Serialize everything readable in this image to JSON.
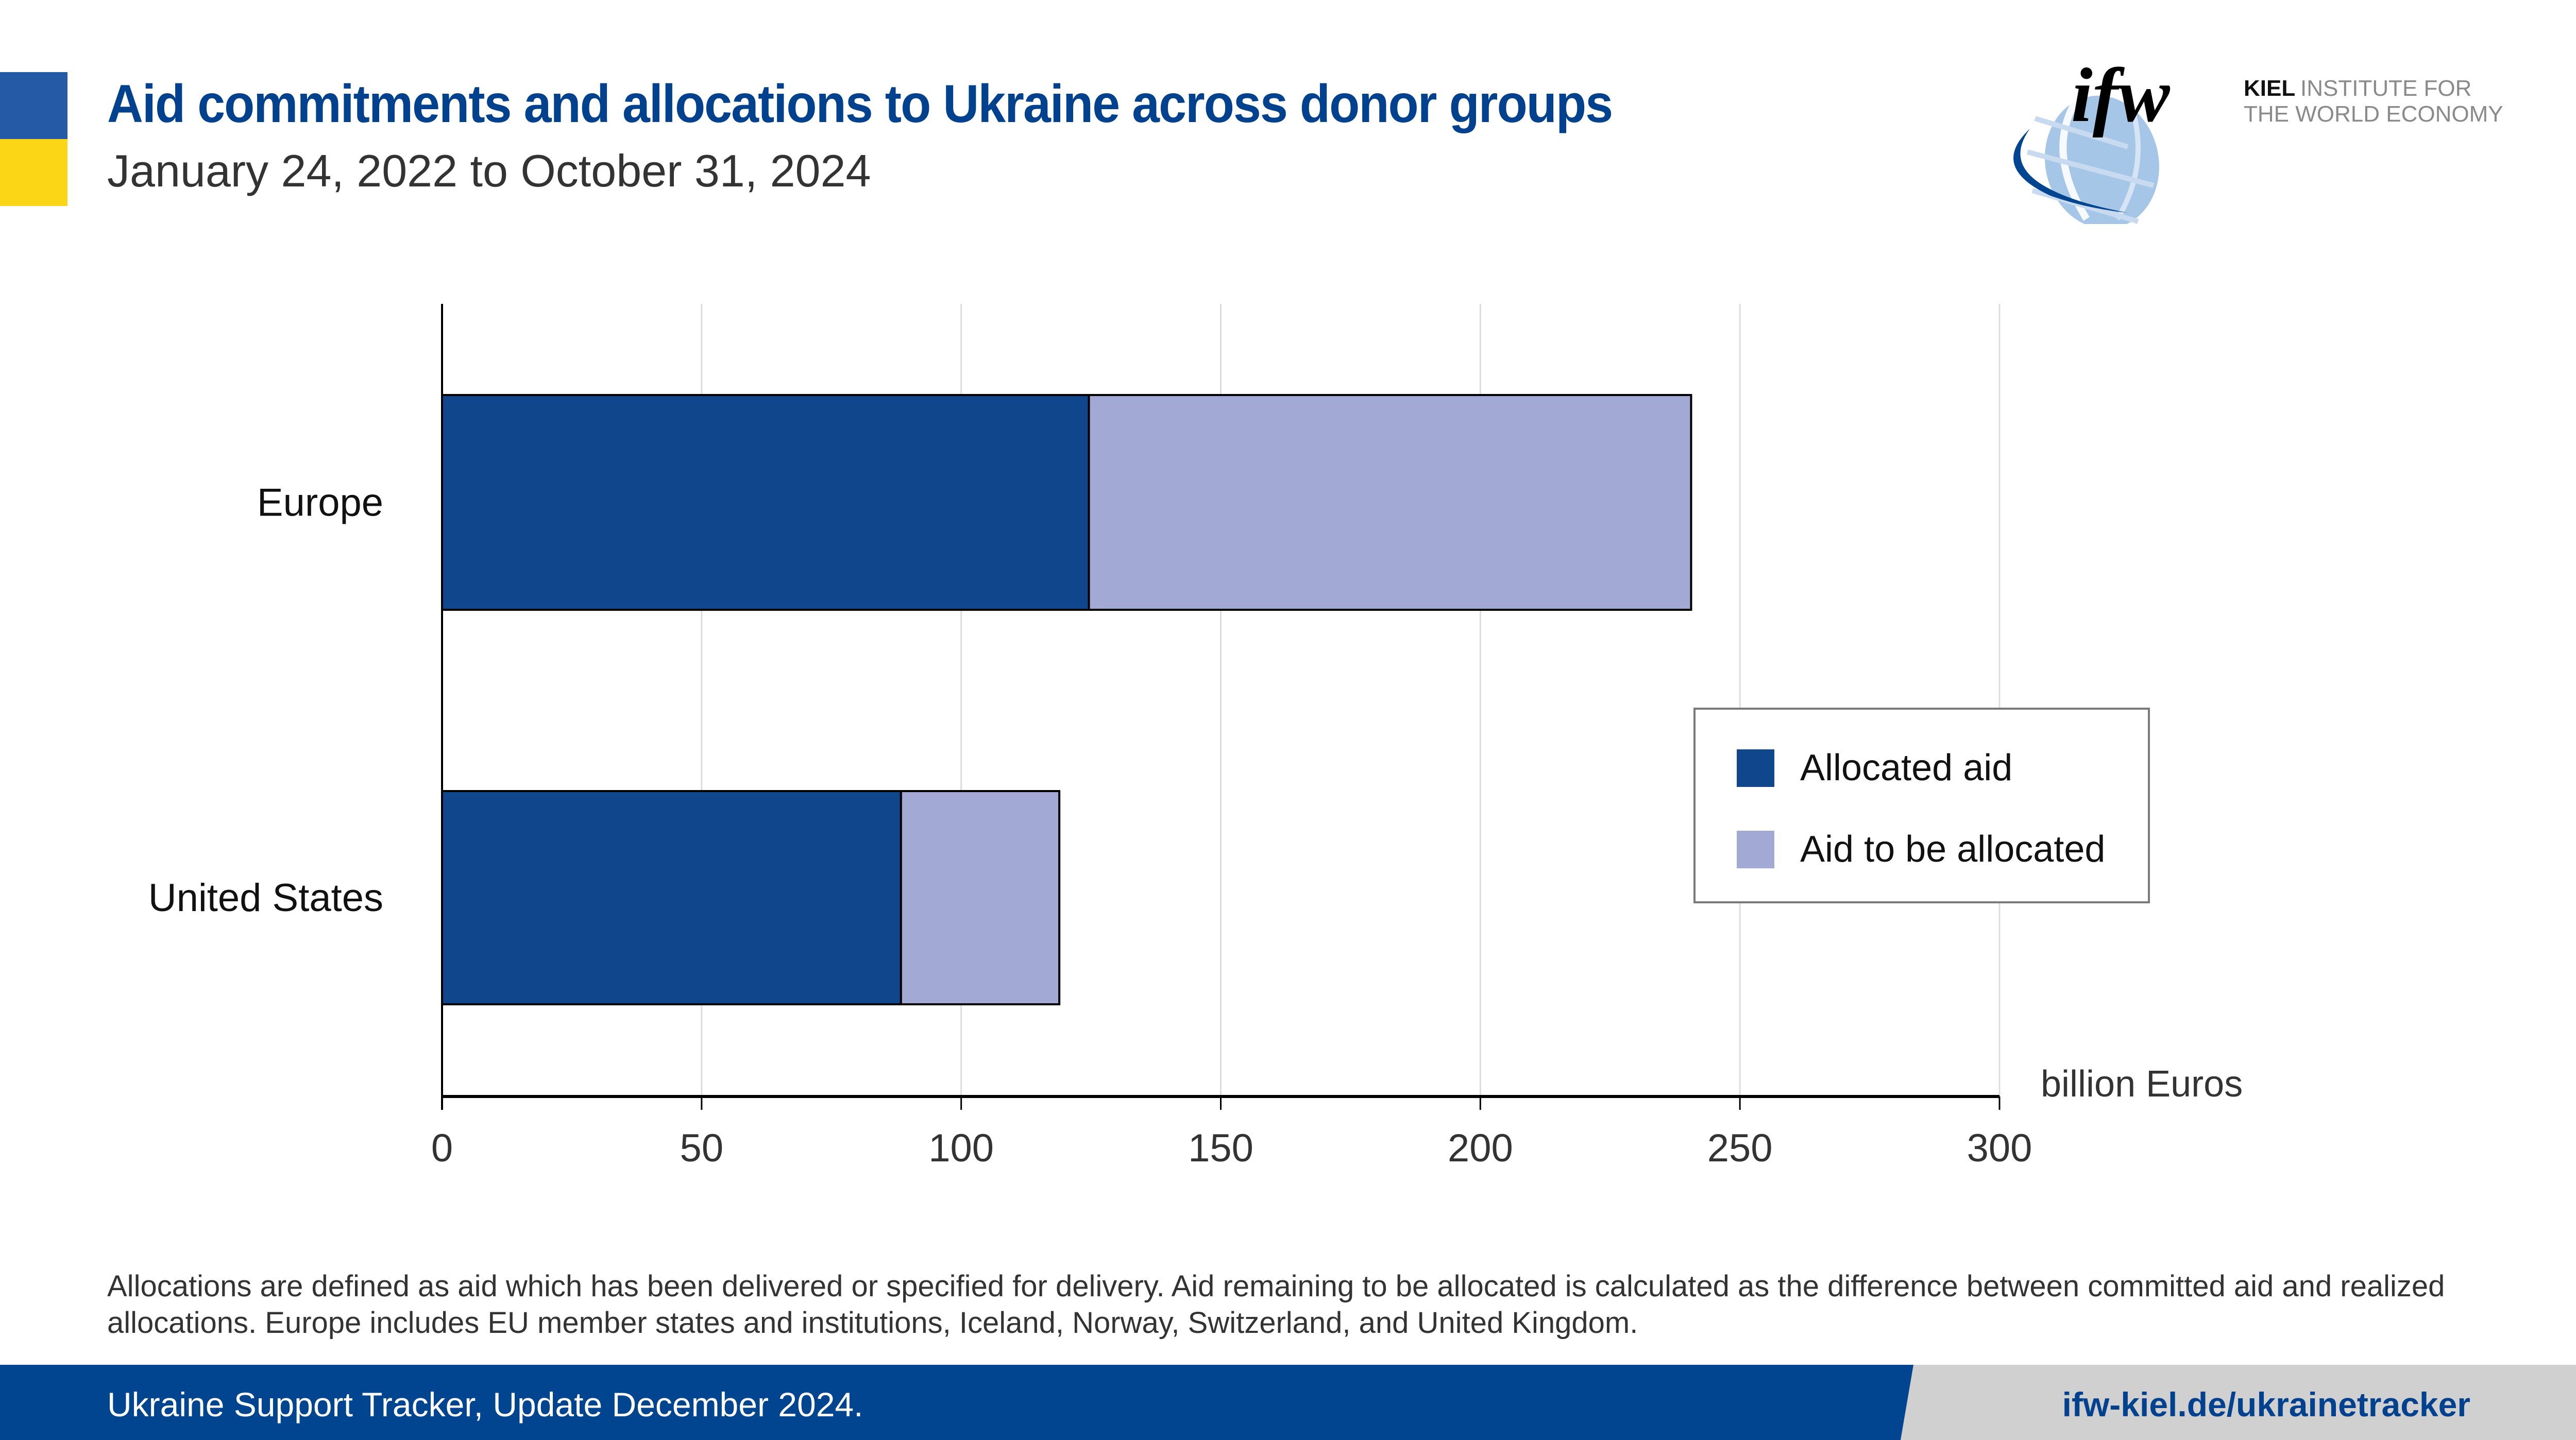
{
  "colors": {
    "flag_blue": "#255BA6",
    "flag_yellow": "#FBD616",
    "title": "#01418E",
    "allocated": "#0F468C",
    "to_be_allocated": "#A2A9D4",
    "footer_blue": "#01448F",
    "footer_grey": "#D0D0D0",
    "gridline": "#DCDCDC"
  },
  "header": {
    "title": "Aid commitments and allocations to Ukraine across donor groups",
    "subtitle": "January 24, 2022 to October 31, 2024"
  },
  "logo": {
    "mark": "ifw",
    "name_bold": "KIEL",
    "name_line1": "INSTITUTE FOR",
    "name_line2": "THE WORLD ECONOMY",
    "icon": "globe-icon"
  },
  "chart_data": {
    "type": "bar",
    "orientation": "horizontal",
    "stacked": true,
    "categories": [
      "Europe",
      "United States"
    ],
    "series": [
      {
        "name": "Allocated aid",
        "values": [
          124.6,
          88.4
        ]
      },
      {
        "name": "Aid to be allocated",
        "values": [
          116.0,
          30.5
        ]
      }
    ],
    "title": "Aid commitments and allocations to Ukraine across donor groups",
    "subtitle": "January 24, 2022 to October 31, 2024",
    "xlabel": "billion Euros",
    "ylabel": "",
    "xlim": [
      0,
      300
    ],
    "xticks": [
      0,
      50,
      100,
      150,
      200,
      250,
      300
    ],
    "xtick_labels": [
      "0",
      "50",
      "100",
      "150",
      "200",
      "250",
      "300"
    ],
    "grid": "vertical",
    "legend_position": "right"
  },
  "footnote": "Allocations are defined as aid which has been delivered or specified for delivery. Aid remaining to be allocated is calculated as the difference between committed aid and realized allocations. Europe includes EU member states and institutions, Iceland, Norway, Switzerland, and United Kingdom.",
  "footer": {
    "left": "Ukraine Support Tracker, Update December 2024.",
    "right": "ifw-kiel.de/ukrainetracker"
  }
}
